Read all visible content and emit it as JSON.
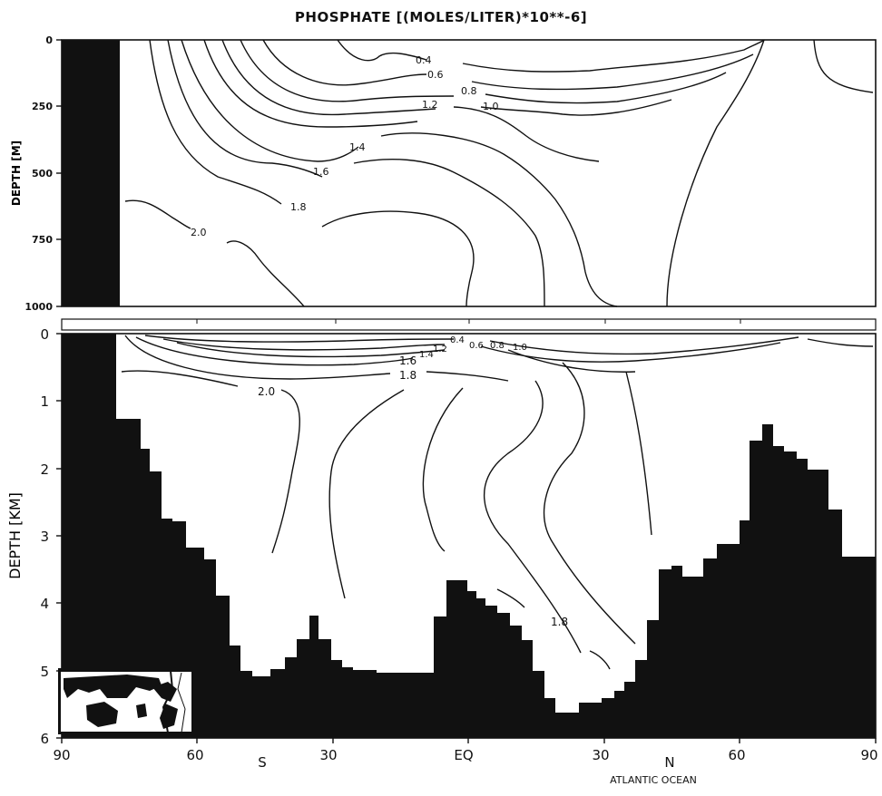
{
  "chart_data": [
    {
      "type": "line",
      "title": "PHOSPHATE [(MOLES/LITER)*10**-6]",
      "ylabel": "DEPTH [M]",
      "y_tick_labels": [
        "0",
        "250",
        "500",
        "750",
        "1000"
      ],
      "ylim": [
        1000,
        0
      ],
      "contour_labels": [
        "0.4",
        "0.6",
        "0.8",
        "1.0",
        "1.2",
        "1.4",
        "1.6",
        "1.8",
        "2.0"
      ],
      "grid": false
    },
    {
      "type": "line",
      "ylabel": "DEPTH [KM]",
      "y_tick_labels": [
        "0",
        "1",
        "2",
        "3",
        "4",
        "5",
        "6"
      ],
      "ylim": [
        6,
        0
      ],
      "x_tick_labels": [
        "90",
        "60",
        "30",
        "EQ",
        "30",
        "60",
        "90"
      ],
      "x_hemisphere_labels": [
        "S",
        "N"
      ],
      "region_label": "ATLANTIC OCEAN",
      "contour_labels": [
        "0.4",
        "0.6",
        "0.8",
        "1.0",
        "1.2",
        "1.4",
        "1.6",
        "1.8",
        "2.0",
        "1.8"
      ],
      "grid": false
    }
  ]
}
